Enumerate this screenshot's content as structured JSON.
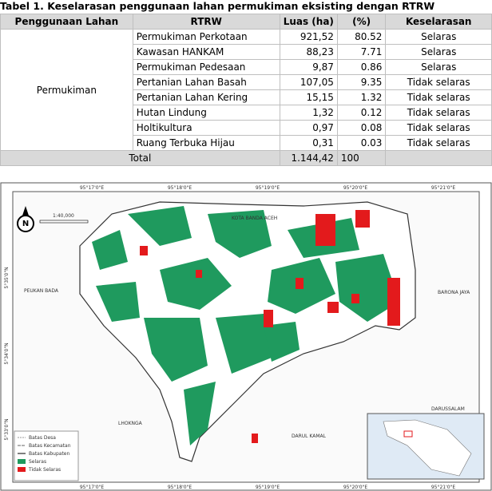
{
  "header": {
    "title": "Tabel 1. Keselarasan penggunaan lahan permukiman eksisting dengan RTRW"
  },
  "table": {
    "columns": [
      "Penggunaan Lahan",
      "RTRW",
      "Luas (ha)",
      "(%)",
      "Keselarasan"
    ],
    "group": "Permukiman",
    "rows": [
      [
        "Permukiman Perkotaan",
        "921,52",
        "80.52",
        "Selaras"
      ],
      [
        "Kawasan HANKAM",
        "88,23",
        "7.71",
        "Selaras"
      ],
      [
        "Permukiman Pedesaan",
        "9,87",
        "0.86",
        "Selaras"
      ],
      [
        "Pertanian Lahan Basah",
        "107,05",
        "9.35",
        "Tidak selaras"
      ],
      [
        "Pertanian Lahan Kering",
        "15,15",
        "1.32",
        "Tidak selaras"
      ],
      [
        "Hutan Lindung",
        "1,32",
        "0.12",
        "Tidak selaras"
      ],
      [
        "Holtikultura",
        "0,97",
        "0.08",
        "Tidak selaras"
      ],
      [
        "Ruang Terbuka Hijau",
        "0,31",
        "0.03",
        "Tidak selaras"
      ]
    ],
    "total": {
      "label": "Total",
      "luas": "1.144,42",
      "percent": "100"
    }
  },
  "map": {
    "scale": "1:40,000",
    "places": [
      "KOTA BANDA ACEH",
      "PEUKAN BADA",
      "BARONA JAYA",
      "LHOKNGA",
      "DARUL KAMAL",
      "DARUSSALAM"
    ],
    "top_coords": [
      "95°17'0\"E",
      "95°18'0\"E",
      "95°19'0\"E",
      "95°20'0\"E",
      "95°21'0\"E"
    ],
    "left_coords": [
      "5°35'0\"N",
      "5°34'0\"N",
      "5°33'0\"N"
    ],
    "legend": [
      "Batas Desa",
      "Batas Kecamatan",
      "Batas Kabupaten",
      "Selaras",
      "Tidak Selaras"
    ]
  }
}
